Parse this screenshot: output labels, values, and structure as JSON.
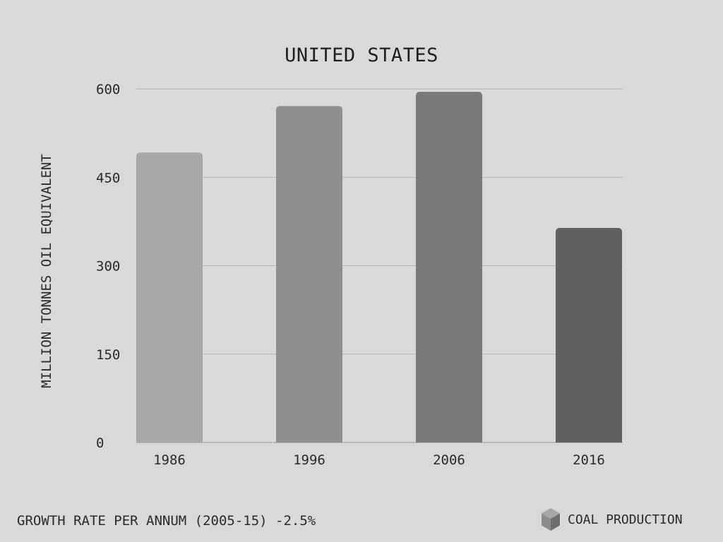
{
  "chart_data": {
    "type": "bar",
    "title": "UNITED STATES",
    "ylabel": "MILLION TONNES OIL EQUIVALENT",
    "xlabel": "",
    "categories": [
      "1986",
      "1996",
      "2006",
      "2016"
    ],
    "values": [
      492,
      571,
      595,
      364
    ],
    "ylim": [
      0,
      600
    ],
    "yticks": [
      0,
      150,
      300,
      450,
      600
    ],
    "grid": true,
    "bar_colors": [
      "#a8a8a8",
      "#8f8f8f",
      "#797979",
      "#606060"
    ]
  },
  "footer": {
    "growth_rate": "GROWTH RATE PER ANNUM (2005-15) -2.5%",
    "legend_label": "COAL PRODUCTION",
    "legend_icon": "cube-icon"
  },
  "colors": {
    "background": "#d9d9d9",
    "gridline": "#b3b3b3",
    "axis": "#9a9a9a",
    "text": "#2a2a2a"
  }
}
